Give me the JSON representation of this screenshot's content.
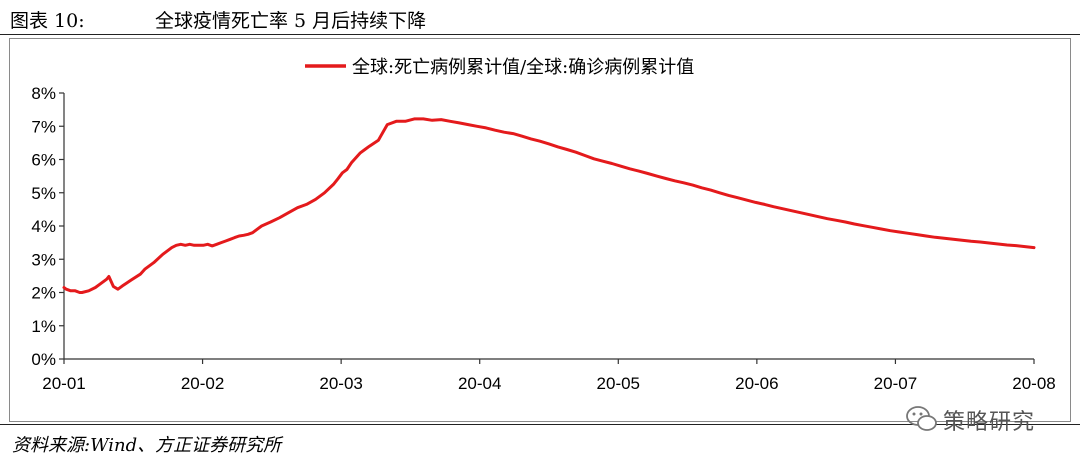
{
  "figure": {
    "label": "图表 10:",
    "title": "全球疫情死亡率 5 月后持续下降",
    "source": "资料来源:Wind、方正证券研究所",
    "watermark": "策略研究"
  },
  "chart_data": {
    "type": "line",
    "title": "",
    "xlabel": "",
    "ylabel": "",
    "ylim": [
      0,
      8
    ],
    "ytick_labels": [
      "0%",
      "1%",
      "2%",
      "3%",
      "4%",
      "5%",
      "6%",
      "7%",
      "8%"
    ],
    "xtick_labels": [
      "20-01",
      "20-02",
      "20-03",
      "20-04",
      "20-05",
      "20-06",
      "20-07",
      "20-08"
    ],
    "grid": false,
    "legend_position": "top-right",
    "color": "#e41a1c",
    "series": [
      {
        "name": "全球:死亡病例累计值/全球:确诊病例累计值",
        "x": [
          0,
          0.5,
          1.5,
          2.5,
          3.5,
          4,
          5.5,
          7,
          8,
          9.5,
          10,
          11,
          12,
          13,
          15,
          17,
          18,
          20,
          22,
          24,
          25,
          26,
          27,
          28,
          29,
          30,
          31,
          32,
          33,
          34,
          35,
          36,
          37,
          38,
          39,
          40,
          41,
          42,
          43,
          44,
          46,
          48,
          50,
          52,
          54,
          56,
          58,
          60,
          61,
          62,
          63,
          64,
          65,
          66,
          67,
          68,
          70,
          72,
          74,
          76,
          78,
          80,
          82,
          84,
          86,
          88,
          90,
          92,
          94,
          96,
          98,
          100,
          102,
          104,
          106,
          108,
          110,
          112,
          114,
          116,
          118,
          120,
          122,
          124,
          126,
          128,
          130,
          132,
          134,
          136,
          138,
          140,
          142,
          144,
          146,
          148,
          150,
          152,
          154,
          156,
          158,
          160,
          162,
          164,
          166,
          168,
          170,
          172,
          174,
          176,
          178,
          180,
          182,
          184,
          186,
          188,
          190,
          192,
          194,
          196,
          198,
          200,
          202,
          204,
          206,
          208,
          210,
          212,
          214,
          216
        ],
        "values": [
          2.15,
          2.1,
          2.05,
          2.05,
          2.0,
          2.0,
          2.05,
          2.15,
          2.25,
          2.4,
          2.48,
          2.18,
          2.1,
          2.2,
          2.38,
          2.55,
          2.7,
          2.9,
          3.15,
          3.35,
          3.42,
          3.45,
          3.42,
          3.45,
          3.42,
          3.42,
          3.42,
          3.45,
          3.4,
          3.45,
          3.5,
          3.55,
          3.6,
          3.65,
          3.7,
          3.72,
          3.75,
          3.8,
          3.9,
          4.0,
          4.12,
          4.25,
          4.4,
          4.55,
          4.65,
          4.8,
          5.0,
          5.25,
          5.42,
          5.6,
          5.7,
          5.9,
          6.05,
          6.2,
          6.3,
          6.4,
          6.58,
          7.05,
          7.15,
          7.15,
          7.22,
          7.22,
          7.18,
          7.2,
          7.15,
          7.1,
          7.05,
          7.0,
          6.95,
          6.88,
          6.82,
          6.78,
          6.7,
          6.62,
          6.55,
          6.47,
          6.38,
          6.3,
          6.22,
          6.12,
          6.02,
          5.95,
          5.88,
          5.8,
          5.72,
          5.65,
          5.58,
          5.5,
          5.43,
          5.36,
          5.3,
          5.23,
          5.15,
          5.08,
          5.0,
          4.92,
          4.85,
          4.78,
          4.71,
          4.65,
          4.58,
          4.52,
          4.46,
          4.4,
          4.34,
          4.28,
          4.22,
          4.17,
          4.12,
          4.06,
          4.01,
          3.96,
          3.91,
          3.86,
          3.82,
          3.78,
          3.74,
          3.7,
          3.66,
          3.63,
          3.6,
          3.57,
          3.54,
          3.52,
          3.49,
          3.46,
          3.43,
          3.41,
          3.38,
          3.35
        ]
      }
    ]
  }
}
